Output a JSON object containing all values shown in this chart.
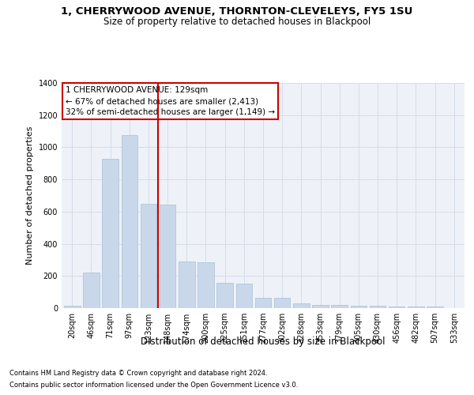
{
  "title1": "1, CHERRYWOOD AVENUE, THORNTON-CLEVELEYS, FY5 1SU",
  "title2": "Size of property relative to detached houses in Blackpool",
  "xlabel": "Distribution of detached houses by size in Blackpool",
  "ylabel": "Number of detached properties",
  "footnote1": "Contains HM Land Registry data © Crown copyright and database right 2024.",
  "footnote2": "Contains public sector information licensed under the Open Government Licence v3.0.",
  "annotation_line1": "1 CHERRYWOOD AVENUE: 129sqm",
  "annotation_line2": "← 67% of detached houses are smaller (2,413)",
  "annotation_line3": "32% of semi-detached houses are larger (1,149) →",
  "bar_color": "#c8d8ea",
  "bar_edge_color": "#a8c0d4",
  "grid_color": "#d0dae8",
  "property_line_color": "#cc0000",
  "bg_color": "#eef2f8",
  "categories": [
    "20sqm",
    "46sqm",
    "71sqm",
    "97sqm",
    "123sqm",
    "148sqm",
    "174sqm",
    "200sqm",
    "225sqm",
    "251sqm",
    "277sqm",
    "302sqm",
    "328sqm",
    "353sqm",
    "379sqm",
    "405sqm",
    "430sqm",
    "456sqm",
    "482sqm",
    "507sqm",
    "533sqm"
  ],
  "values": [
    15,
    220,
    930,
    1075,
    650,
    645,
    290,
    285,
    155,
    150,
    65,
    63,
    30,
    20,
    20,
    15,
    13,
    12,
    11,
    10,
    0
  ],
  "ylim_max": 1400,
  "property_line_x": 4.5,
  "title1_fontsize": 9.5,
  "title2_fontsize": 8.5,
  "ylabel_fontsize": 8,
  "xlabel_fontsize": 8.5,
  "tick_fontsize": 7,
  "annot_fontsize": 7.5,
  "footnote_fontsize": 6.0
}
